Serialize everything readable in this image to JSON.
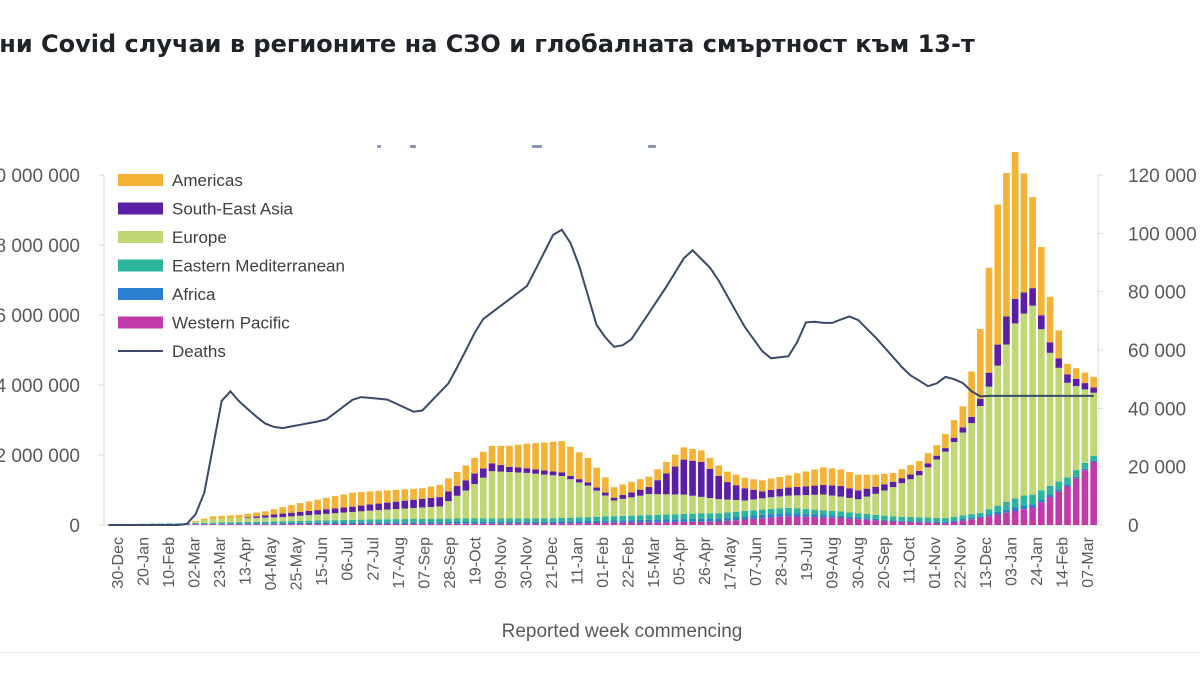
{
  "title": "ични Covid случаи в регионите на СЗО и глобалната смъртност към 13-т",
  "chart_data": {
    "type": "bar",
    "stacked": true,
    "xlabel": "Reported week commencing",
    "left_axis": {
      "ticks": [
        "0",
        "2 000 000",
        "4 000 000",
        "6 000 000",
        "8 000 000",
        "10 000 000"
      ],
      "ylim": [
        0,
        10000000
      ]
    },
    "right_axis": {
      "ticks": [
        "0",
        "20 000",
        "40 000",
        "60 000",
        "80 000",
        "100 000",
        "120 000"
      ],
      "ylim": [
        0,
        120000
      ]
    },
    "x_tick_labels": [
      "30-Dec",
      "20-Jan",
      "10-Feb",
      "02-Mar",
      "23-Mar",
      "13-Apr",
      "04-May",
      "25-May",
      "15-Jun",
      "06-Jul",
      "27-Jul",
      "17-Aug",
      "07-Sep",
      "28-Sep",
      "19-Oct",
      "09-Nov",
      "30-Nov",
      "21-Dec",
      "11-Jan",
      "01-Feb",
      "22-Feb",
      "15-Mar",
      "05-Apr",
      "26-Apr",
      "17-May",
      "07-Jun",
      "28-Jun",
      "19-Jul",
      "09-Aug",
      "30-Aug",
      "20-Sep",
      "11-Oct",
      "01-Nov",
      "22-Nov",
      "13-Dec",
      "03-Jan",
      "24-Jan",
      "14-Feb",
      "07-Mar"
    ],
    "legend": [
      {
        "name": "Americas",
        "color": "#f5b335"
      },
      {
        "name": "South-East Asia",
        "color": "#5a1fa5"
      },
      {
        "name": "Europe",
        "color": "#bfd873"
      },
      {
        "name": "Eastern Mediterranean",
        "color": "#2cb59a"
      },
      {
        "name": "Africa",
        "color": "#2b7fd1"
      },
      {
        "name": "Western Pacific",
        "color": "#c23aa8"
      },
      {
        "name": "Deaths",
        "color": "#3b4a6b"
      }
    ],
    "legend_placement": "top-left",
    "series": [
      {
        "name": "Western Pacific",
        "values": [
          0,
          0,
          0,
          0,
          0,
          0,
          0,
          0,
          0,
          0,
          0,
          0,
          0,
          0,
          0,
          0,
          0,
          0,
          0,
          0,
          0,
          0,
          0,
          0,
          0,
          0,
          0,
          0,
          0,
          0,
          0,
          0,
          0,
          0,
          0,
          0,
          0,
          0,
          0,
          0,
          0,
          0,
          0,
          0,
          0,
          0,
          0,
          0,
          0,
          0,
          0,
          0,
          0,
          0,
          0,
          0,
          0,
          0,
          0,
          0,
          0,
          0,
          0,
          0,
          0,
          0,
          0,
          0,
          0,
          0,
          0,
          0,
          0,
          0,
          0,
          0,
          0,
          0,
          0,
          0,
          0,
          0,
          0,
          0,
          0,
          0,
          0,
          0,
          0,
          0,
          0,
          0,
          0,
          0,
          0,
          0,
          0,
          0,
          0,
          0,
          0,
          0,
          0,
          0,
          0,
          0,
          0,
          0,
          0,
          0,
          0,
          0,
          0,
          0,
          0,
          0,
          0
        ]
      },
      {
        "name": "Africa",
        "values": [
          0,
          0,
          0,
          0,
          0,
          0,
          0,
          0,
          0,
          0,
          0,
          0,
          0,
          0,
          0,
          0,
          0,
          0,
          0,
          0,
          0,
          0,
          0,
          0,
          0,
          0,
          0,
          0,
          0,
          0,
          0,
          0,
          0,
          0,
          0,
          0,
          0,
          0,
          0,
          0,
          0,
          0,
          0,
          0,
          0,
          0,
          0,
          0,
          0,
          0,
          0,
          0,
          0,
          0,
          0,
          0,
          0,
          0,
          0,
          0,
          0,
          0,
          0,
          0,
          0,
          0,
          0,
          0,
          0,
          0,
          0,
          0,
          0,
          0,
          0,
          0,
          0,
          0,
          0,
          0,
          0,
          0,
          0,
          0,
          0,
          0,
          0,
          0,
          0,
          0,
          0,
          0,
          0,
          0,
          0,
          0,
          0,
          0,
          0,
          0,
          0,
          0,
          0,
          0,
          0,
          0,
          0,
          0,
          0,
          0,
          0,
          0,
          0,
          0,
          0,
          0,
          0
        ]
      },
      {
        "name": "Eastern Mediterranean",
        "values": [
          0,
          0,
          0,
          0,
          0,
          0,
          0,
          0,
          0,
          0,
          0,
          0,
          0,
          0,
          0,
          0,
          0,
          0,
          0,
          0,
          0,
          0,
          0,
          0,
          0,
          0,
          0,
          0,
          0,
          0,
          0,
          0,
          0,
          0,
          0,
          0,
          0,
          0,
          0,
          0,
          0,
          0,
          0,
          0,
          0,
          0,
          0,
          0,
          0,
          0,
          0,
          0,
          0,
          0,
          0,
          0,
          0,
          0,
          0,
          0,
          0,
          0,
          0,
          0,
          0,
          0,
          0,
          0,
          0,
          0,
          0,
          0,
          0,
          0,
          0,
          0,
          0,
          0,
          0,
          0,
          0,
          0,
          0,
          0,
          0,
          0,
          0,
          0,
          0,
          0,
          0,
          0,
          0,
          0,
          0,
          0,
          0,
          0,
          0,
          0,
          0,
          0,
          0,
          0,
          0,
          0,
          0,
          0,
          0,
          0,
          0,
          0,
          0,
          0,
          0,
          0,
          0
        ]
      },
      {
        "name": "Europe",
        "values": [
          0,
          0,
          0,
          0,
          0,
          0,
          0,
          0,
          0,
          0,
          0,
          0,
          0,
          0,
          0,
          0,
          0,
          0,
          0,
          0,
          0,
          0,
          0,
          0,
          0,
          0,
          0,
          0,
          0,
          0,
          0,
          0,
          0,
          0,
          0,
          0,
          0,
          0,
          0,
          0,
          0,
          0,
          0,
          0,
          0,
          0,
          0,
          0,
          0,
          0,
          0,
          0,
          0,
          0,
          0,
          0,
          0,
          0,
          0,
          0,
          0,
          0,
          0,
          0,
          0,
          0,
          0,
          0,
          0,
          0,
          0,
          0,
          0,
          0,
          0,
          0,
          0,
          0,
          0,
          0,
          0,
          0,
          0,
          0,
          0,
          0,
          0,
          0,
          0,
          0,
          0,
          0,
          0,
          0,
          0,
          0,
          0,
          0,
          0,
          0,
          0,
          0,
          0,
          0,
          0,
          0,
          0,
          0,
          0,
          0,
          0,
          0,
          0,
          0,
          0,
          0,
          0
        ]
      },
      {
        "name": "South-East Asia",
        "values": [
          0,
          0,
          0,
          0,
          0,
          0,
          0,
          0,
          0,
          0,
          0,
          0,
          0,
          0,
          0,
          0,
          0,
          0,
          0,
          0,
          0,
          0,
          0,
          0,
          0,
          0,
          0,
          0,
          0,
          0,
          0,
          0,
          0,
          0,
          0,
          0,
          0,
          0,
          0,
          0,
          0,
          0,
          0,
          0,
          0,
          0,
          0,
          0,
          0,
          0,
          0,
          0,
          0,
          0,
          0,
          0,
          0,
          0,
          0,
          0,
          0,
          0,
          0,
          0,
          0,
          0,
          0,
          0,
          0,
          0,
          0,
          0,
          0,
          0,
          0,
          0,
          0,
          0,
          0,
          0,
          0,
          0,
          0,
          0,
          0,
          0,
          0,
          0,
          0,
          0,
          0,
          0,
          0,
          0,
          0,
          0,
          0,
          0,
          0,
          0,
          0,
          0,
          0,
          0,
          0,
          0,
          0,
          0,
          0,
          0,
          0,
          0,
          0,
          0,
          0,
          0,
          0
        ]
      },
      {
        "name": "Americas",
        "values": [
          0,
          0,
          0,
          0,
          0,
          0,
          0,
          0,
          0,
          0,
          0,
          0,
          0,
          0,
          0,
          0,
          0,
          0,
          0,
          0,
          0,
          0,
          0,
          0,
          0,
          0,
          0,
          0,
          0,
          0,
          0,
          0,
          0,
          0,
          0,
          0,
          0,
          0,
          0,
          0,
          0,
          0,
          0,
          0,
          0,
          0,
          0,
          0,
          0,
          0,
          0,
          0,
          0,
          0,
          0,
          0,
          0,
          0,
          0,
          0,
          0,
          0,
          0,
          0,
          0,
          0,
          0,
          0,
          0,
          0,
          0,
          0,
          0,
          0,
          0,
          0,
          0,
          0,
          0,
          0,
          0,
          0,
          0,
          0,
          0,
          0,
          0,
          0,
          0,
          0,
          0,
          0,
          0,
          0,
          0,
          0,
          0,
          0,
          0,
          0,
          0,
          0,
          0,
          0,
          0,
          0,
          0,
          0,
          0,
          0,
          0,
          0,
          0,
          0,
          0,
          0,
          0
        ]
      }
    ],
    "deaths": [
      0,
      0,
      0,
      0,
      0,
      0,
      0,
      0,
      0,
      0,
      0,
      0,
      0,
      0,
      0,
      0,
      0,
      0,
      0,
      0,
      0,
      0,
      0,
      0,
      0,
      0,
      0,
      0,
      0,
      0,
      0,
      0,
      0,
      0,
      0,
      0,
      0,
      0,
      0,
      0,
      0,
      0,
      0,
      0,
      0,
      0,
      0,
      0,
      0,
      0,
      0,
      0,
      0,
      0,
      0,
      0,
      0,
      0,
      0,
      0,
      0,
      0,
      0,
      0,
      0,
      0,
      0,
      0,
      0,
      0,
      0,
      0,
      0,
      0,
      0,
      0,
      0,
      0,
      0,
      0,
      0,
      0,
      0,
      0,
      0,
      0,
      0,
      0,
      0,
      0,
      0,
      0,
      0,
      0,
      0,
      0,
      0,
      0,
      0,
      0,
      0,
      0,
      0,
      0,
      0,
      0,
      0,
      0,
      0,
      0,
      0,
      0,
      0,
      0,
      0,
      0,
      0
    ]
  }
}
